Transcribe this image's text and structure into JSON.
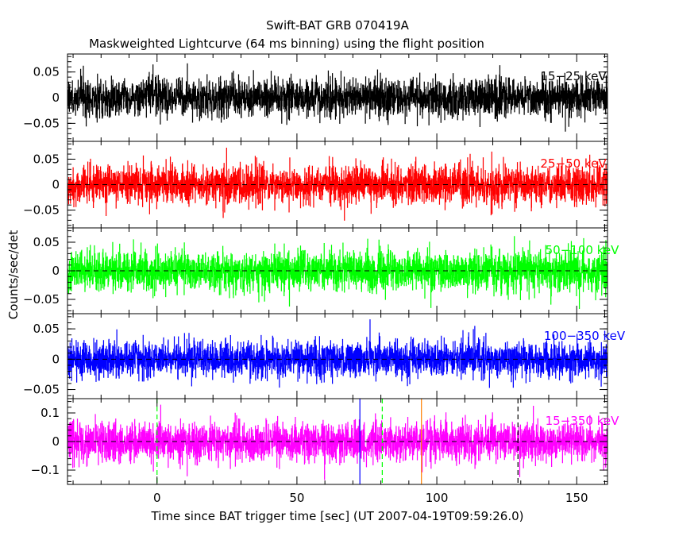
{
  "chart_data": {
    "type": "line",
    "title": "Swift-BAT GRB 070419A",
    "subtitle": "Maskweighted Lightcurve (64 ms binning) using the flight position",
    "xlabel": "Time since BAT trigger time [sec] (UT 2007-04-19T09:59:26.0)",
    "ylabel": "Counts/sec/det",
    "xlim": [
      -32,
      161
    ],
    "x_ticks": [
      0,
      50,
      100,
      150
    ],
    "x_tick_labels": [
      "0",
      "50",
      "100",
      "150"
    ],
    "bin_width_sec": 0.064,
    "grid": false,
    "panels": [
      {
        "name": "15-25 keV",
        "label": "15−25 keV",
        "color": "#000000",
        "ylim": [
          -0.085,
          0.085
        ],
        "y_ticks": [
          0.05,
          0,
          -0.05
        ],
        "y_tick_labels": [
          "0.05",
          "0",
          "−0.05"
        ],
        "zero_line": false,
        "noise_sigma": 0.019,
        "peak_abs": 0.075
      },
      {
        "name": "25-50 keV",
        "label": "25−50 keV",
        "color": "#ff0000",
        "ylim": [
          -0.085,
          0.085
        ],
        "y_ticks": [
          0.05,
          0,
          -0.05
        ],
        "y_tick_labels": [
          "0.05",
          "0",
          "−0.05"
        ],
        "zero_line": true,
        "noise_sigma": 0.019,
        "peak_abs": 0.08
      },
      {
        "name": "50-100 keV",
        "label": "50−100 keV",
        "color": "#00ff00",
        "ylim": [
          -0.075,
          0.075
        ],
        "y_ticks": [
          0.05,
          0,
          -0.05
        ],
        "y_tick_labels": [
          "0.05",
          "0",
          "−0.05"
        ],
        "zero_line": true,
        "noise_sigma": 0.018,
        "peak_abs": 0.07
      },
      {
        "name": "100-350 keV",
        "label": "100−350 keV",
        "color": "#0000ff",
        "ylim": [
          -0.065,
          0.075
        ],
        "y_ticks": [
          0.05,
          0,
          -0.05
        ],
        "y_tick_labels": [
          "0.05",
          "0",
          "−0.05"
        ],
        "zero_line": true,
        "noise_sigma": 0.015,
        "peak_abs": 0.065
      },
      {
        "name": "15-350 keV",
        "label": "15−350 keV",
        "color": "#ff00ff",
        "ylim": [
          -0.15,
          0.15
        ],
        "y_ticks": [
          0.1,
          0,
          -0.1
        ],
        "y_tick_labels": [
          "0.1",
          "0",
          "−0.1"
        ],
        "zero_line": true,
        "noise_sigma": 0.035,
        "peak_abs": 0.145
      }
    ],
    "markers": [
      {
        "x": 0,
        "color": "#00ff00",
        "style": "dashed"
      },
      {
        "x": 72.5,
        "color": "#0000ff",
        "style": "solid"
      },
      {
        "x": 80.5,
        "color": "#00ff00",
        "style": "dashed"
      },
      {
        "x": 94.5,
        "color": "#ff8000",
        "style": "solid"
      },
      {
        "x": 129,
        "color": "#000000",
        "style": "dashed"
      }
    ]
  }
}
